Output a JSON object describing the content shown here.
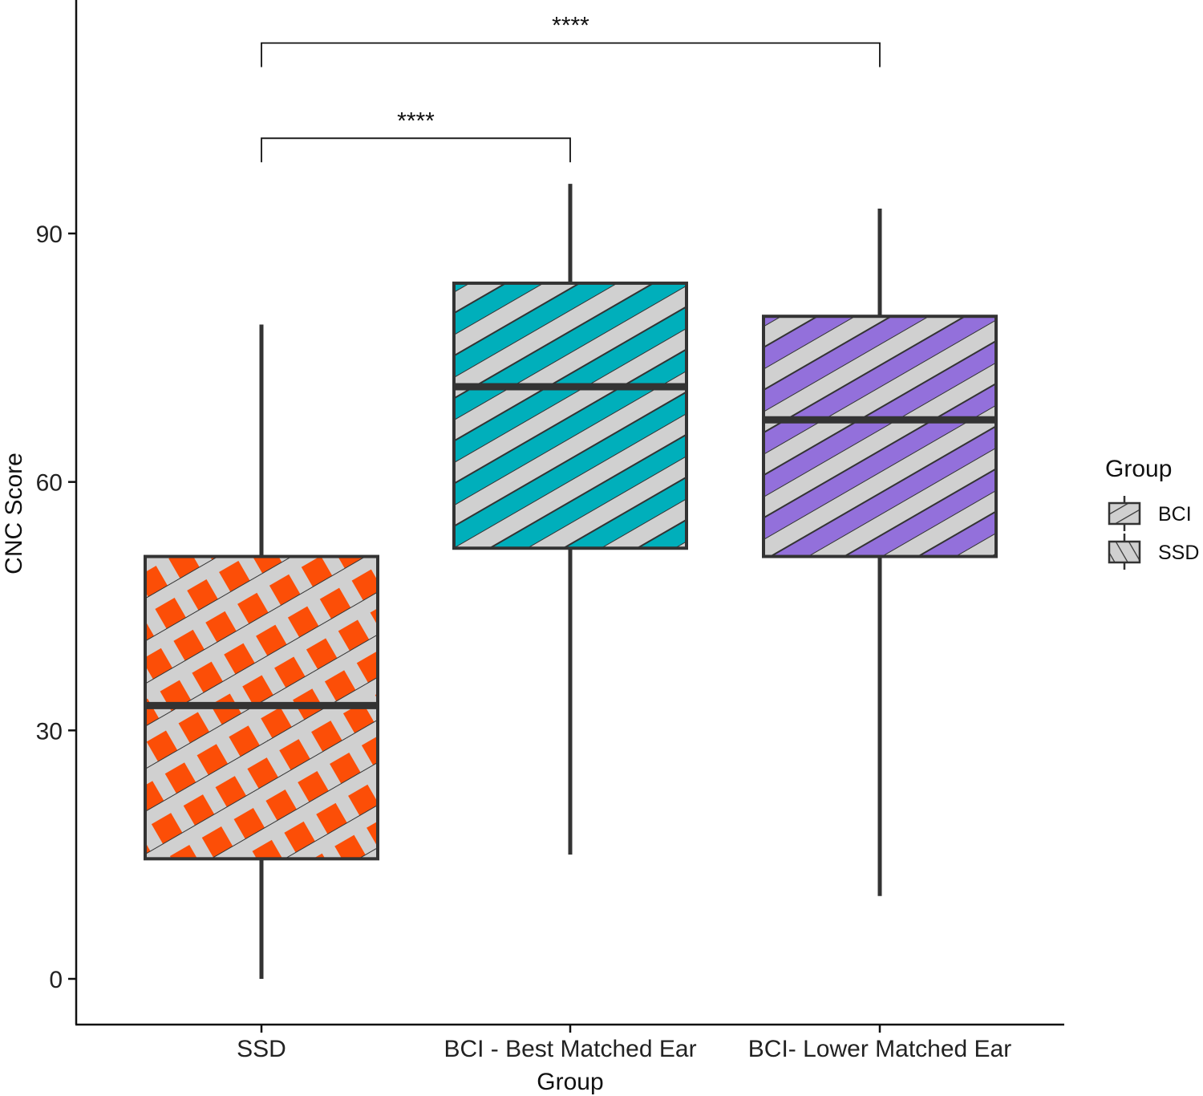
{
  "chart_data": {
    "type": "boxplot",
    "xlabel": "Group",
    "ylabel": "CNC Score",
    "ylim": [
      -5,
      118
    ],
    "yticks": [
      0,
      30,
      60,
      90
    ],
    "categories": [
      "SSD",
      "BCI - Best Matched Ear",
      "BCI- Lower Matched Ear"
    ],
    "boxes": [
      {
        "category": "SSD",
        "group": "SSD",
        "fill": "#FC4E07",
        "min": 0,
        "q1": 14.5,
        "median": 33,
        "q3": 51,
        "max": 79
      },
      {
        "category": "BCI - Best Matched Ear",
        "group": "BCI",
        "fill": "#00AFBB",
        "min": 15,
        "q1": 52,
        "median": 71.5,
        "q3": 84,
        "max": 96
      },
      {
        "category": "BCI- Lower Matched Ear",
        "group": "BCI",
        "fill": "#9370DB",
        "min": 10,
        "q1": 51,
        "median": 67.5,
        "q3": 80,
        "max": 93
      }
    ],
    "significance": [
      {
        "from": "SSD",
        "to": "BCI - Best Matched Ear",
        "label": "****",
        "y": 101.5
      },
      {
        "from": "SSD",
        "to": "BCI- Lower Matched Ear",
        "label": "****",
        "y": 113
      }
    ],
    "legend": {
      "title": "Group",
      "position": "right",
      "entries": [
        {
          "label": "BCI",
          "pattern": "stripe"
        },
        {
          "label": "SSD",
          "pattern": "crosshatch"
        }
      ]
    },
    "grid": false,
    "pattern_color": "#D0D0D0",
    "line_color": "#333333"
  }
}
